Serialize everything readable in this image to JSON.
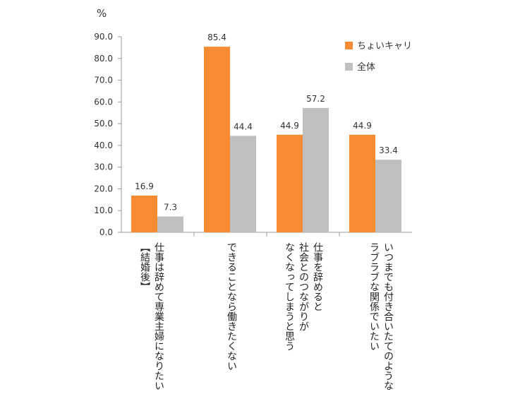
{
  "chart_data": {
    "type": "bar",
    "ylabel": "%",
    "ylim": [
      0,
      90
    ],
    "yticks": [
      "0.0",
      "10.0",
      "20.0",
      "30.0",
      "40.0",
      "50.0",
      "60.0",
      "70.0",
      "80.0",
      "90.0"
    ],
    "categories": [
      "仕事は辞めて専業主婦になりたい\n【結婚後】",
      "できることなら働きたくない",
      "仕事を辞めると\n社会とのつながりが\nなくなってしまうと思う",
      "いつまでも付き合いたてのような\nラブラブな関係でいたい"
    ],
    "series": [
      {
        "name": "ちょいキャリ",
        "values": [
          16.9,
          85.4,
          44.9,
          44.9
        ],
        "labels": [
          "16.9",
          "85.4",
          "44.9",
          "44.9"
        ],
        "color": "#f68b33"
      },
      {
        "name": "全体",
        "values": [
          7.3,
          44.4,
          57.2,
          33.4
        ],
        "labels": [
          "7.3",
          "44.4",
          "57.2",
          "33.4"
        ],
        "color": "#bfbfbf"
      }
    ],
    "legend_position": "top-right",
    "grid": false
  }
}
